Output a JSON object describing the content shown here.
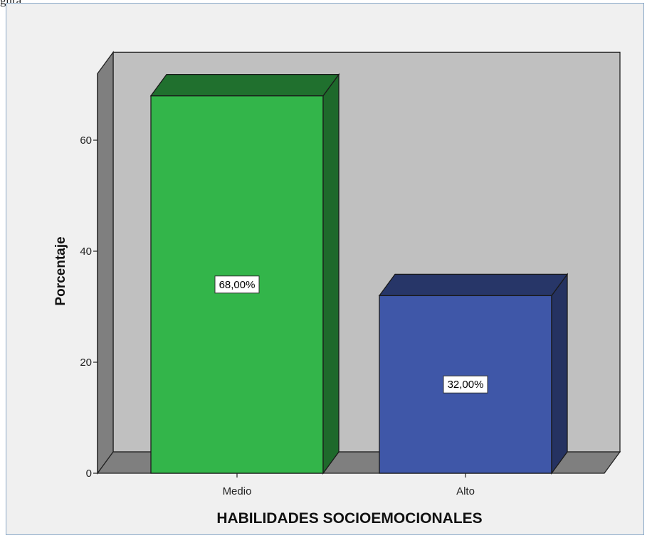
{
  "caption": "gura",
  "chart_data": {
    "type": "bar",
    "title": "",
    "xlabel": "HABILIDADES SOCIOEMOCIONALES",
    "ylabel": "Porcentaje",
    "categories": [
      "Medio",
      "Alto"
    ],
    "values": [
      68,
      32
    ],
    "data_labels": [
      "68,00%",
      "32,00%"
    ],
    "colors": [
      "#33b54a",
      "#3f57a8"
    ],
    "ylim": [
      0,
      72
    ],
    "yticks": [
      0,
      20,
      40,
      60
    ],
    "grid": false,
    "legend": "none",
    "style": "3d",
    "wall_color": "#c0c0c0"
  }
}
